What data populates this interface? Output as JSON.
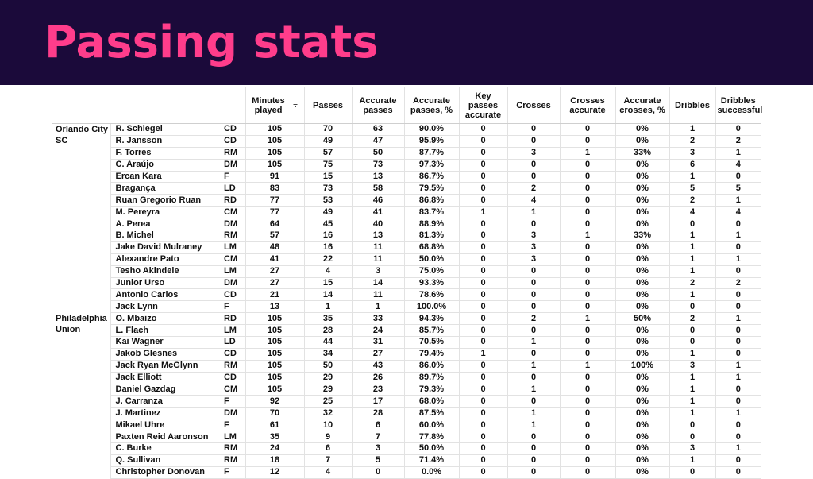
{
  "title": "Passing stats",
  "columns": {
    "minutes": "Minutes played",
    "passes": "Passes",
    "accurate_passes": "Accurate passes",
    "accurate_passes_pct": "Accurate passes, %",
    "key_passes": "Key passes accurate",
    "crosses": "Crosses",
    "crosses_accurate": "Crosses accurate",
    "accurate_crosses_pct": "Accurate crosses, %",
    "dribbles": "Dribbles",
    "dribbles_successful": "Dribbles successful"
  },
  "teams": [
    {
      "name": "Orlando City SC",
      "players": [
        [
          "R. Schlegel",
          "CD",
          "105",
          "70",
          "63",
          "90.0%",
          "0",
          "0",
          "0",
          "0%",
          "1",
          "0"
        ],
        [
          "R. Jansson",
          "CD",
          "105",
          "49",
          "47",
          "95.9%",
          "0",
          "0",
          "0",
          "0%",
          "2",
          "2"
        ],
        [
          "F. Torres",
          "RM",
          "105",
          "57",
          "50",
          "87.7%",
          "0",
          "3",
          "1",
          "33%",
          "3",
          "1"
        ],
        [
          "C. Araújo",
          "DM",
          "105",
          "75",
          "73",
          "97.3%",
          "0",
          "0",
          "0",
          "0%",
          "6",
          "4"
        ],
        [
          "Ercan Kara",
          "F",
          "91",
          "15",
          "13",
          "86.7%",
          "0",
          "0",
          "0",
          "0%",
          "1",
          "0"
        ],
        [
          "Bragança",
          "LD",
          "83",
          "73",
          "58",
          "79.5%",
          "0",
          "2",
          "0",
          "0%",
          "5",
          "5"
        ],
        [
          "Ruan Gregorio Ruan",
          "RD",
          "77",
          "53",
          "46",
          "86.8%",
          "0",
          "4",
          "0",
          "0%",
          "2",
          "1"
        ],
        [
          "M. Pereyra",
          "CM",
          "77",
          "49",
          "41",
          "83.7%",
          "1",
          "1",
          "0",
          "0%",
          "4",
          "4"
        ],
        [
          "A. Perea",
          "DM",
          "64",
          "45",
          "40",
          "88.9%",
          "0",
          "0",
          "0",
          "0%",
          "0",
          "0"
        ],
        [
          "B. Michel",
          "RM",
          "57",
          "16",
          "13",
          "81.3%",
          "0",
          "3",
          "1",
          "33%",
          "1",
          "1"
        ],
        [
          "Jake David Mulraney",
          "LM",
          "48",
          "16",
          "11",
          "68.8%",
          "0",
          "3",
          "0",
          "0%",
          "1",
          "0"
        ],
        [
          "Alexandre Pato",
          "CM",
          "41",
          "22",
          "11",
          "50.0%",
          "0",
          "3",
          "0",
          "0%",
          "1",
          "1"
        ],
        [
          "Tesho Akindele",
          "LM",
          "27",
          "4",
          "3",
          "75.0%",
          "0",
          "0",
          "0",
          "0%",
          "1",
          "0"
        ],
        [
          "Junior Urso",
          "DM",
          "27",
          "15",
          "14",
          "93.3%",
          "0",
          "0",
          "0",
          "0%",
          "2",
          "2"
        ],
        [
          "Antonio Carlos",
          "CD",
          "21",
          "14",
          "11",
          "78.6%",
          "0",
          "0",
          "0",
          "0%",
          "1",
          "0"
        ],
        [
          "Jack Lynn",
          "F",
          "13",
          "1",
          "1",
          "100.0%",
          "0",
          "0",
          "0",
          "0%",
          "0",
          "0"
        ]
      ]
    },
    {
      "name": "Philadelphia Union",
      "players": [
        [
          "O. Mbaizo",
          "RD",
          "105",
          "35",
          "33",
          "94.3%",
          "0",
          "2",
          "1",
          "50%",
          "2",
          "1"
        ],
        [
          "L. Flach",
          "LM",
          "105",
          "28",
          "24",
          "85.7%",
          "0",
          "0",
          "0",
          "0%",
          "0",
          "0"
        ],
        [
          "Kai Wagner",
          "LD",
          "105",
          "44",
          "31",
          "70.5%",
          "0",
          "1",
          "0",
          "0%",
          "0",
          "0"
        ],
        [
          "Jakob Glesnes",
          "CD",
          "105",
          "34",
          "27",
          "79.4%",
          "1",
          "0",
          "0",
          "0%",
          "1",
          "0"
        ],
        [
          "Jack Ryan McGlynn",
          "RM",
          "105",
          "50",
          "43",
          "86.0%",
          "0",
          "1",
          "1",
          "100%",
          "3",
          "1"
        ],
        [
          "Jack Elliott",
          "CD",
          "105",
          "29",
          "26",
          "89.7%",
          "0",
          "0",
          "0",
          "0%",
          "1",
          "1"
        ],
        [
          "Daniel Gazdag",
          "CM",
          "105",
          "29",
          "23",
          "79.3%",
          "0",
          "1",
          "0",
          "0%",
          "1",
          "0"
        ],
        [
          "J. Carranza",
          "F",
          "92",
          "25",
          "17",
          "68.0%",
          "0",
          "0",
          "0",
          "0%",
          "1",
          "0"
        ],
        [
          "J. Martinez",
          "DM",
          "70",
          "32",
          "28",
          "87.5%",
          "0",
          "1",
          "0",
          "0%",
          "1",
          "1"
        ],
        [
          "Mikael Uhre",
          "F",
          "61",
          "10",
          "6",
          "60.0%",
          "0",
          "1",
          "0",
          "0%",
          "0",
          "0"
        ],
        [
          "Paxten Reid Aaronson",
          "LM",
          "35",
          "9",
          "7",
          "77.8%",
          "0",
          "0",
          "0",
          "0%",
          "0",
          "0"
        ],
        [
          "C. Burke",
          "RM",
          "24",
          "6",
          "3",
          "50.0%",
          "0",
          "0",
          "0",
          "0%",
          "3",
          "1"
        ],
        [
          "Q. Sullivan",
          "RM",
          "18",
          "7",
          "5",
          "71.4%",
          "0",
          "0",
          "0",
          "0%",
          "1",
          "0"
        ],
        [
          "Christopher Donovan",
          "F",
          "12",
          "4",
          "0",
          "0.0%",
          "0",
          "0",
          "0",
          "0%",
          "0",
          "0"
        ]
      ]
    }
  ],
  "icons": {
    "sort": "sort-descending-icon"
  },
  "colors": {
    "banner_bg": "#1b0a3a",
    "title": "#ff3d8b"
  }
}
